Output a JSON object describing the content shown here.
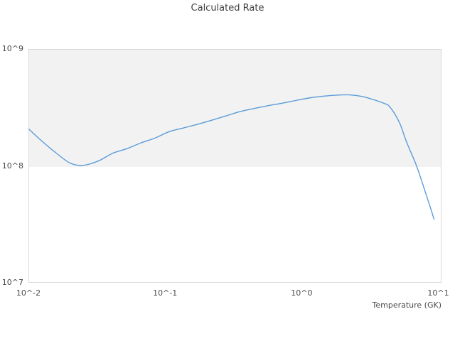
{
  "title": "Calculated Rate",
  "x_axis": {
    "label": "Temperature (GK)",
    "scale": "log",
    "ticks": [
      {
        "value": 0.01,
        "label": "10^-2"
      },
      {
        "value": 0.1,
        "label": "10^-1"
      },
      {
        "value": 1,
        "label": "10^0"
      },
      {
        "value": 10,
        "label": "10^1"
      }
    ]
  },
  "y_axis": {
    "label": "",
    "scale": "log",
    "ticks": [
      {
        "value": 10000000.0,
        "label": "10^7"
      },
      {
        "value": 100000000.0,
        "label": "10^8"
      },
      {
        "value": 1000000000.0,
        "label": "10^9"
      }
    ]
  },
  "colors": {
    "line": "#5b9cd9",
    "band": "#f2f2f2",
    "plot_border": "#d9d9d9",
    "gridline": "#e8e8e8",
    "tick_text": "#4a4a4a",
    "title_text": "#3d3d3d",
    "background": "#ffffff"
  },
  "chart_data": {
    "type": "line",
    "title": "Calculated Rate",
    "xlabel": "Temperature (GK)",
    "ylabel": "",
    "xscale": "log",
    "yscale": "log",
    "xlim": [
      0.01,
      10.55
    ],
    "ylim": [
      10000000.0,
      1000000000.0
    ],
    "grid": "horizontal-decade-bands",
    "legend": "none",
    "shaded_band_y": [
      100000000.0,
      1000000000.0
    ],
    "series": [
      {
        "name": "calculated-rate",
        "x": [
          0.01,
          0.0124,
          0.0158,
          0.0201,
          0.0249,
          0.0324,
          0.0412,
          0.0523,
          0.0664,
          0.0843,
          0.107,
          0.136,
          0.173,
          0.22,
          0.28,
          0.356,
          0.45,
          0.57,
          0.73,
          0.93,
          1.15,
          1.45,
          1.8,
          2.25,
          2.75,
          3.4,
          4.0,
          4.43,
          5.19,
          5.87,
          6.95,
          8.14,
          8.86,
          9.3
        ],
        "y": [
          208000000.0,
          165000000.0,
          130000000.0,
          106000000.0,
          101000000.0,
          110000000.0,
          128000000.0,
          140000000.0,
          157000000.0,
          173000000.0,
          196000000.0,
          211000000.0,
          227000000.0,
          246000000.0,
          268000000.0,
          292000000.0,
          310000000.0,
          328000000.0,
          345000000.0,
          365000000.0,
          382000000.0,
          395000000.0,
          403000000.0,
          405000000.0,
          393000000.0,
          367000000.0,
          343000000.0,
          319000000.0,
          235000000.0,
          159000000.0,
          99000000.0,
          57000000.0,
          42000000.0,
          35000000.0
        ]
      }
    ]
  }
}
